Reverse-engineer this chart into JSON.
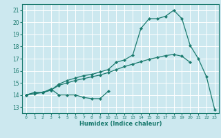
{
  "xlabel": "Humidex (Indice chaleur)",
  "bg_color": "#cce8ef",
  "line_color": "#1a7a6e",
  "grid_color": "#ffffff",
  "xlim": [
    -0.5,
    23.5
  ],
  "ylim": [
    12.5,
    21.5
  ],
  "xticks": [
    0,
    1,
    2,
    3,
    4,
    5,
    6,
    7,
    8,
    9,
    10,
    11,
    12,
    13,
    14,
    15,
    16,
    17,
    18,
    19,
    20,
    21,
    22,
    23
  ],
  "yticks": [
    13,
    14,
    15,
    16,
    17,
    18,
    19,
    20,
    21
  ],
  "upper_x": [
    0,
    1,
    2,
    3,
    4,
    5,
    6,
    7,
    8,
    9,
    10,
    11,
    12,
    13,
    14,
    15,
    16,
    17,
    18,
    19,
    20,
    21,
    22,
    23
  ],
  "upper_y": [
    14.0,
    14.2,
    14.2,
    14.4,
    14.9,
    15.2,
    15.4,
    15.6,
    15.7,
    15.9,
    16.1,
    16.7,
    16.9,
    17.3,
    19.5,
    20.3,
    20.3,
    20.5,
    21.0,
    20.3,
    18.1,
    17.0,
    15.5,
    12.8
  ],
  "mid_x": [
    0,
    1,
    2,
    3,
    4,
    5,
    6,
    7,
    8,
    9,
    10,
    11,
    12,
    13,
    14,
    15,
    16,
    17,
    18,
    19,
    20
  ],
  "mid_y": [
    14.0,
    14.1,
    14.2,
    14.4,
    14.8,
    15.0,
    15.2,
    15.35,
    15.5,
    15.65,
    15.85,
    16.1,
    16.35,
    16.55,
    16.75,
    16.95,
    17.1,
    17.25,
    17.35,
    17.2,
    16.7
  ],
  "low_x": [
    0,
    1,
    2,
    3,
    4,
    5,
    6,
    7,
    8,
    9,
    10
  ],
  "low_y": [
    14.0,
    14.2,
    14.2,
    14.5,
    14.0,
    14.0,
    14.0,
    13.8,
    13.7,
    13.7,
    14.3
  ]
}
